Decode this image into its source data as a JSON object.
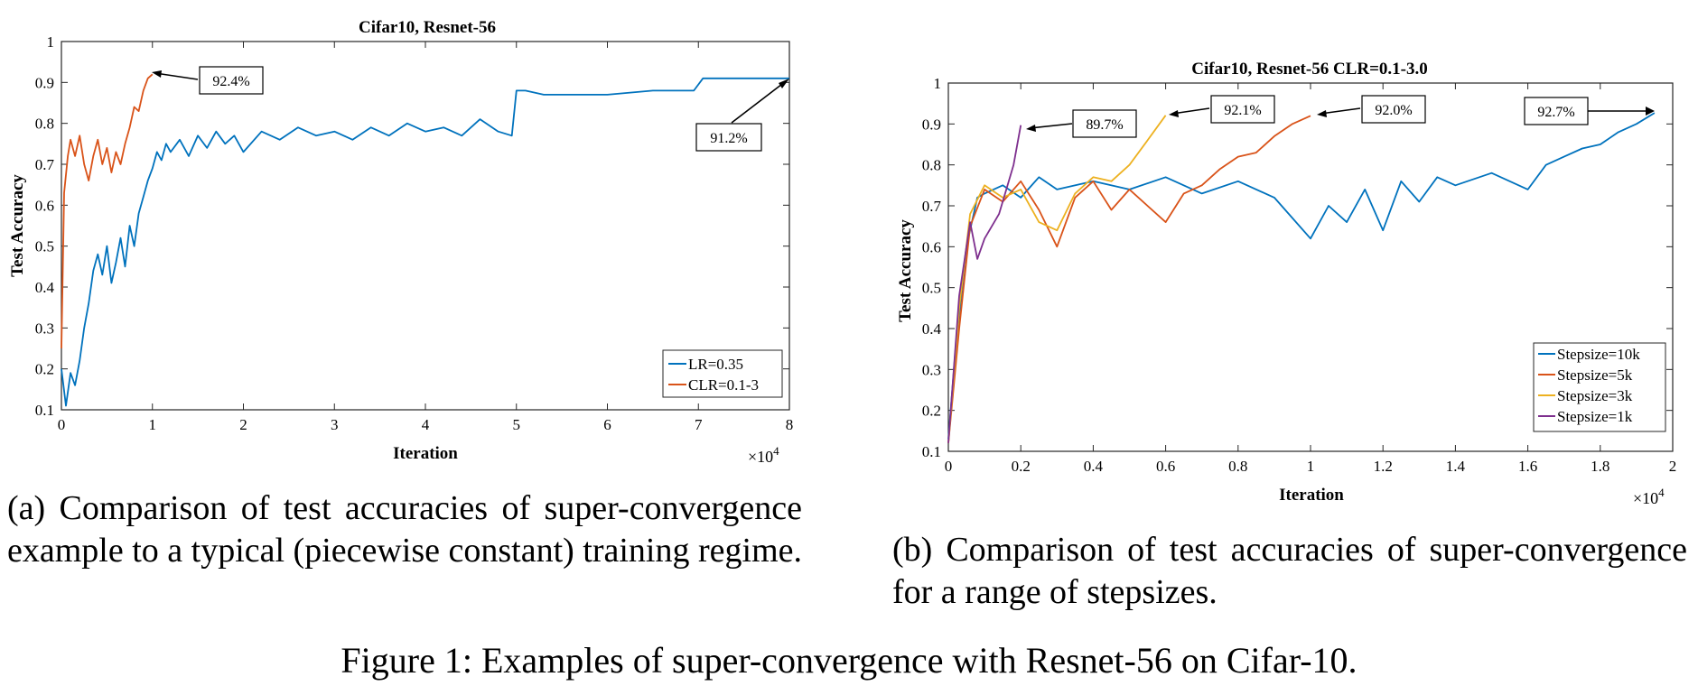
{
  "chart_data": [
    {
      "id": "a",
      "type": "line",
      "title": "Cifar10, Resnet-56",
      "xlabel": "Iteration",
      "ylabel": "Test Accuracy",
      "x_multiplier": "×10",
      "x_exponent": "4",
      "xlim": [
        0,
        8
      ],
      "ylim": [
        0.1,
        1
      ],
      "xticks": [
        0,
        1,
        2,
        3,
        4,
        5,
        6,
        7,
        8
      ],
      "yticks": [
        0.1,
        0.2,
        0.3,
        0.4,
        0.5,
        0.6,
        0.7,
        0.8,
        0.9,
        1
      ],
      "legend_position": "bottom-right",
      "series": [
        {
          "name": "LR=0.35",
          "color": "#0072BD",
          "x": [
            0,
            0.05,
            0.1,
            0.15,
            0.2,
            0.25,
            0.3,
            0.35,
            0.4,
            0.45,
            0.5,
            0.55,
            0.6,
            0.65,
            0.7,
            0.75,
            0.8,
            0.85,
            0.9,
            0.95,
            1.0,
            1.05,
            1.1,
            1.15,
            1.2,
            1.3,
            1.4,
            1.5,
            1.6,
            1.7,
            1.8,
            1.9,
            2.0,
            2.2,
            2.4,
            2.6,
            2.8,
            3.0,
            3.2,
            3.4,
            3.6,
            3.8,
            4.0,
            4.2,
            4.4,
            4.6,
            4.8,
            4.95,
            5.0,
            5.1,
            5.3,
            5.6,
            6.0,
            6.5,
            6.95,
            7.05,
            7.3,
            7.6,
            8.0
          ],
          "values": [
            0.2,
            0.11,
            0.19,
            0.16,
            0.22,
            0.3,
            0.36,
            0.44,
            0.48,
            0.43,
            0.5,
            0.41,
            0.46,
            0.52,
            0.45,
            0.55,
            0.5,
            0.58,
            0.62,
            0.66,
            0.69,
            0.73,
            0.71,
            0.75,
            0.73,
            0.76,
            0.72,
            0.77,
            0.74,
            0.78,
            0.75,
            0.77,
            0.73,
            0.78,
            0.76,
            0.79,
            0.77,
            0.78,
            0.76,
            0.79,
            0.77,
            0.8,
            0.78,
            0.79,
            0.77,
            0.81,
            0.78,
            0.77,
            0.88,
            0.88,
            0.87,
            0.87,
            0.87,
            0.88,
            0.88,
            0.91,
            0.91,
            0.91,
            0.91
          ]
        },
        {
          "name": "CLR=0.1-3",
          "color": "#D95319",
          "x": [
            0,
            0.03,
            0.07,
            0.1,
            0.15,
            0.2,
            0.25,
            0.3,
            0.35,
            0.4,
            0.45,
            0.5,
            0.55,
            0.6,
            0.65,
            0.7,
            0.75,
            0.8,
            0.85,
            0.9,
            0.95,
            1.0
          ],
          "values": [
            0.25,
            0.63,
            0.72,
            0.76,
            0.72,
            0.77,
            0.7,
            0.66,
            0.72,
            0.76,
            0.7,
            0.74,
            0.68,
            0.73,
            0.7,
            0.75,
            0.79,
            0.84,
            0.83,
            0.88,
            0.91,
            0.92
          ]
        }
      ],
      "annotations": [
        {
          "text": "92.4%"
        },
        {
          "text": "91.2%"
        }
      ]
    },
    {
      "id": "b",
      "type": "line",
      "title": "Cifar10, Resnet-56 CLR=0.1-3.0",
      "xlabel": "Iteration",
      "ylabel": "Test Accuracy",
      "x_multiplier": "×10",
      "x_exponent": "4",
      "xlim": [
        0,
        2
      ],
      "ylim": [
        0.1,
        1
      ],
      "xticks": [
        0,
        0.2,
        0.4,
        0.6,
        0.8,
        1,
        1.2,
        1.4,
        1.6,
        1.8,
        2
      ],
      "yticks": [
        0.1,
        0.2,
        0.3,
        0.4,
        0.5,
        0.6,
        0.7,
        0.8,
        0.9,
        1
      ],
      "legend_position": "bottom-right",
      "series": [
        {
          "name": "Stepsize=10k",
          "color": "#0072BD",
          "x": [
            0,
            0.02,
            0.05,
            0.08,
            0.1,
            0.15,
            0.2,
            0.25,
            0.3,
            0.4,
            0.5,
            0.6,
            0.7,
            0.8,
            0.9,
            1.0,
            1.05,
            1.1,
            1.15,
            1.2,
            1.25,
            1.3,
            1.35,
            1.4,
            1.5,
            1.6,
            1.65,
            1.7,
            1.75,
            1.8,
            1.85,
            1.9,
            1.95
          ],
          "values": [
            0.13,
            0.35,
            0.6,
            0.72,
            0.73,
            0.75,
            0.72,
            0.77,
            0.74,
            0.76,
            0.74,
            0.77,
            0.73,
            0.76,
            0.72,
            0.62,
            0.7,
            0.66,
            0.74,
            0.64,
            0.76,
            0.71,
            0.77,
            0.75,
            0.78,
            0.74,
            0.8,
            0.82,
            0.84,
            0.85,
            0.88,
            0.9,
            0.927
          ]
        },
        {
          "name": "Stepsize=5k",
          "color": "#D95319",
          "x": [
            0,
            0.03,
            0.06,
            0.1,
            0.15,
            0.2,
            0.25,
            0.3,
            0.35,
            0.4,
            0.45,
            0.5,
            0.55,
            0.6,
            0.65,
            0.7,
            0.75,
            0.8,
            0.85,
            0.9,
            0.95,
            1.0
          ],
          "values": [
            0.12,
            0.4,
            0.65,
            0.74,
            0.71,
            0.76,
            0.69,
            0.6,
            0.72,
            0.76,
            0.69,
            0.74,
            0.7,
            0.66,
            0.73,
            0.75,
            0.79,
            0.82,
            0.83,
            0.87,
            0.9,
            0.92
          ]
        },
        {
          "name": "Stepsize=3k",
          "color": "#EDB120",
          "x": [
            0,
            0.03,
            0.06,
            0.1,
            0.15,
            0.2,
            0.25,
            0.3,
            0.35,
            0.4,
            0.45,
            0.5,
            0.55,
            0.6
          ],
          "values": [
            0.12,
            0.45,
            0.68,
            0.75,
            0.72,
            0.74,
            0.66,
            0.64,
            0.73,
            0.77,
            0.76,
            0.8,
            0.86,
            0.921
          ]
        },
        {
          "name": "Stepsize=1k",
          "color": "#7E2F8E",
          "x": [
            0,
            0.03,
            0.06,
            0.08,
            0.1,
            0.12,
            0.14,
            0.16,
            0.18,
            0.2
          ],
          "values": [
            0.12,
            0.48,
            0.66,
            0.57,
            0.62,
            0.65,
            0.68,
            0.74,
            0.8,
            0.897
          ]
        }
      ],
      "annotations": [
        {
          "text": "89.7%"
        },
        {
          "text": "92.1%"
        },
        {
          "text": "92.0%"
        },
        {
          "text": "92.7%"
        }
      ]
    }
  ],
  "captions": {
    "a": "(a) Comparison of test accuracies of super-convergence example to a typical (piecewise constant) training regime.",
    "b": "(b) Comparison of test accuracies of super-convergence for a range of stepsizes.",
    "figure": "Figure 1: Examples of super-convergence with Resnet-56 on Cifar-10."
  }
}
